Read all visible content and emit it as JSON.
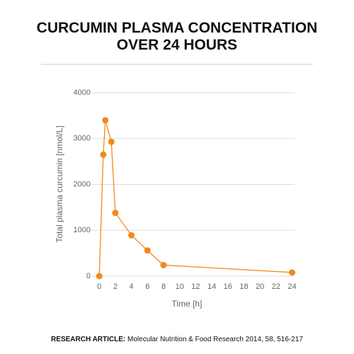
{
  "chart_data": {
    "type": "line",
    "title": "CURCUMIN PLASMA CONCENTRATION OVER 24 HOURS",
    "x_label": "Time [h]",
    "y_label": "Total plasma curcumin [nmol/L]",
    "x": [
      0,
      0.5,
      0.75,
      1.5,
      2,
      4,
      6,
      8,
      24
    ],
    "series": [
      {
        "name": "Curcumin",
        "color": "#f08a1c",
        "values": [
          0,
          2650,
          3400,
          2930,
          1380,
          890,
          560,
          240,
          80
        ]
      }
    ],
    "xlim": [
      -0.9,
      24.3
    ],
    "xticks": [
      0,
      2,
      4,
      6,
      8,
      10,
      12,
      14,
      16,
      18,
      20,
      22,
      24
    ],
    "ylim": [
      0,
      4000
    ],
    "yticks": [
      0,
      1000,
      2000,
      3000,
      4000
    ],
    "grid": true,
    "source_label": "RESEARCH ARTICLE:",
    "source": "Molecular Nutrition & Food Research 2014, 58, 516-217"
  }
}
